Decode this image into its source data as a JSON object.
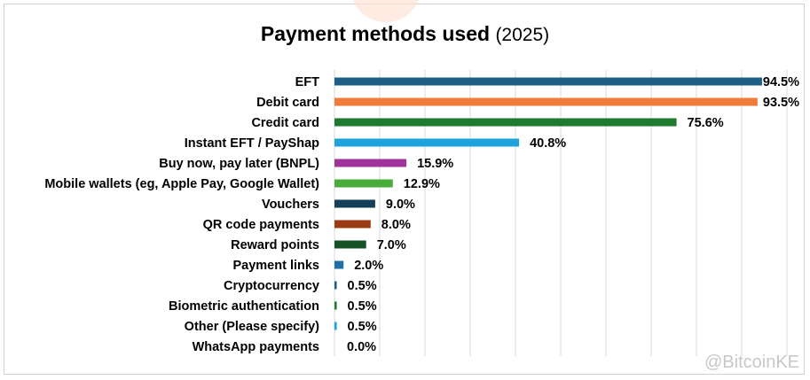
{
  "chart_data": {
    "type": "bar",
    "orientation": "horizontal",
    "title": "Payment methods used",
    "subtitle": "(2025)",
    "categories": [
      "EFT",
      "Debit card",
      "Credit card",
      "Instant EFT / PayShap",
      "Buy now, pay later (BNPL)",
      "Mobile wallets (eg, Apple Pay, Google Wallet)",
      "Vouchers",
      "QR code payments",
      "Reward points",
      "Payment links",
      "Cryptocurrency",
      "Biometric authentication",
      "Other (Please specify)",
      "WhatsApp payments"
    ],
    "values": [
      94.5,
      93.5,
      75.6,
      40.8,
      15.9,
      12.9,
      9.0,
      8.0,
      7.0,
      2.0,
      0.5,
      0.5,
      0.5,
      0.0
    ],
    "value_labels": [
      "94.5%",
      "93.5%",
      "75.6%",
      "40.8%",
      "15.9%",
      "12.9%",
      "9.0%",
      "8.0%",
      "7.0%",
      "2.0%",
      "0.5%",
      "0.5%",
      "0.5%",
      "0.0%"
    ],
    "colors": [
      "#1f5f86",
      "#f07b3b",
      "#1e7a2e",
      "#1ea3db",
      "#a0339b",
      "#4aac3a",
      "#153f56",
      "#9a3d14",
      "#145226",
      "#1f6fa6",
      "#1f5f86",
      "#1e7a2e",
      "#1ea3db",
      "#a0339b"
    ],
    "xlim": [
      0,
      100
    ],
    "grid": true,
    "xlabel": "",
    "ylabel": ""
  },
  "watermark": "@BitcoinKE"
}
